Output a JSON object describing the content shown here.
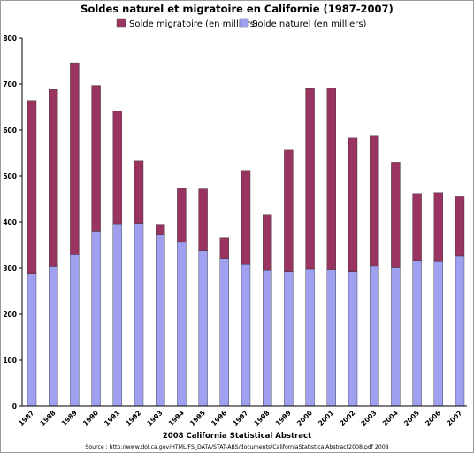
{
  "chart_data": {
    "type": "bar",
    "stacked": true,
    "title": "Soldes naturel et migratoire en Californie (1987-2007)",
    "xlabel": "2008 California Statistical Abstract",
    "source": "Source : http://www.dof.ca.gov/HTML/FS_DATA/STAT-ABS/documents/CaliforniaStatisticalAbstract2008.pdf 2008",
    "ylabel": "",
    "ylim": [
      0,
      800
    ],
    "yticks": [
      0,
      100,
      200,
      300,
      400,
      500,
      600,
      700,
      800
    ],
    "grid": false,
    "legend_position": "top",
    "categories": [
      "1987",
      "1988",
      "1989",
      "1990",
      "1991",
      "1992",
      "1993",
      "1994",
      "1995",
      "1996",
      "1997",
      "1998",
      "1999",
      "2000",
      "2001",
      "2002",
      "2003",
      "2004",
      "2005",
      "2006",
      "2007"
    ],
    "series": [
      {
        "name": "Solde naturel (en milliers)",
        "color": "#a0a0f0",
        "values": [
          287,
          303,
          330,
          380,
          396,
          397,
          372,
          356,
          337,
          320,
          309,
          296,
          293,
          298,
          297,
          293,
          304,
          301,
          316,
          315,
          327
        ]
      },
      {
        "name": "Solde migratoire (en milliers)",
        "color": "#993360",
        "values": [
          377,
          385,
          416,
          317,
          245,
          136,
          23,
          117,
          135,
          46,
          203,
          120,
          265,
          392,
          394,
          290,
          283,
          229,
          146,
          149,
          128
        ]
      }
    ],
    "legend_order": [
      1,
      0
    ]
  }
}
